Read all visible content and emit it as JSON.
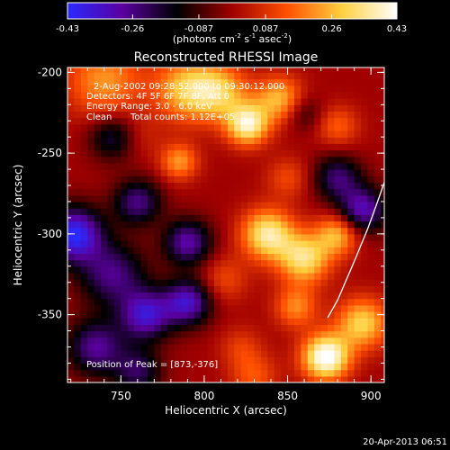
{
  "colorbar": {
    "ticks": [
      "-0.43",
      "-0.26",
      "-0.087",
      "0.087",
      "0.26",
      "0.43"
    ],
    "units_prefix": "(photons cm",
    "units_exp1": "-2",
    "units_mid": " s",
    "units_exp2": "-1",
    "units_mid2": " asec",
    "units_exp3": "-2",
    "units_suffix": ")",
    "range": [
      -0.43,
      0.43
    ],
    "colors": [
      "#2a2aff",
      "#5a00a0",
      "#000000",
      "#a00000",
      "#ff5000",
      "#ffd040",
      "#ffffff"
    ]
  },
  "chart_data": {
    "type": "heatmap",
    "title": "Reconstructed RHESSI Image",
    "xlabel": "Heliocentric X (arcsec)",
    "ylabel": "Heliocentric Y (arcsec)",
    "xlim": [
      718,
      908
    ],
    "ylim": [
      -392,
      -197
    ],
    "xticks": [
      750,
      800,
      850,
      900
    ],
    "yticks": [
      -200,
      -250,
      -300,
      -350
    ],
    "annotations": {
      "time": "2-Aug-2002 09:28:52.000 to 09:30:12.000",
      "detectors": "Detectors: 4F 5F 6F 7F 8F, Att 0",
      "energy": "Energy Range: 3.0 - 6.0 keV",
      "clean": "Clean",
      "counts": "Total counts: 1.12E+05",
      "peak": "Position of Peak = [873,-376]"
    },
    "limb_curve": [
      [
        874,
        -352
      ],
      [
        880,
        -341
      ],
      [
        890,
        -317
      ],
      [
        898,
        -297
      ],
      [
        904,
        -280
      ],
      [
        908,
        -268
      ]
    ],
    "sources": [
      {
        "x": 740,
        "y": -205,
        "amp": 0.22,
        "sigma": 16
      },
      {
        "x": 790,
        "y": -210,
        "amp": 0.28,
        "sigma": 14
      },
      {
        "x": 810,
        "y": -212,
        "amp": 0.24,
        "sigma": 12
      },
      {
        "x": 826,
        "y": -232,
        "amp": 0.38,
        "sigma": 9
      },
      {
        "x": 845,
        "y": -216,
        "amp": 0.26,
        "sigma": 10
      },
      {
        "x": 785,
        "y": -255,
        "amp": 0.22,
        "sigma": 8
      },
      {
        "x": 762,
        "y": -240,
        "amp": 0.06,
        "sigma": 9
      },
      {
        "x": 850,
        "y": -265,
        "amp": 0.12,
        "sigma": 9
      },
      {
        "x": 880,
        "y": -233,
        "amp": 0.15,
        "sigma": 9
      },
      {
        "x": 838,
        "y": -300,
        "amp": 0.36,
        "sigma": 11
      },
      {
        "x": 860,
        "y": -315,
        "amp": 0.33,
        "sigma": 11
      },
      {
        "x": 880,
        "y": -300,
        "amp": 0.26,
        "sigma": 9
      },
      {
        "x": 812,
        "y": -328,
        "amp": 0.12,
        "sigma": 10
      },
      {
        "x": 855,
        "y": -345,
        "amp": 0.2,
        "sigma": 9
      },
      {
        "x": 822,
        "y": -370,
        "amp": 0.1,
        "sigma": 9
      },
      {
        "x": 830,
        "y": -388,
        "amp": 0.14,
        "sigma": 10
      },
      {
        "x": 873,
        "y": -376,
        "amp": 0.46,
        "sigma": 10
      },
      {
        "x": 895,
        "y": -355,
        "amp": 0.3,
        "sigma": 11
      },
      {
        "x": 722,
        "y": -300,
        "amp": -0.42,
        "sigma": 12
      },
      {
        "x": 745,
        "y": -325,
        "amp": -0.26,
        "sigma": 14
      },
      {
        "x": 765,
        "y": -350,
        "amp": -0.34,
        "sigma": 11
      },
      {
        "x": 790,
        "y": -305,
        "amp": -0.3,
        "sigma": 10
      },
      {
        "x": 790,
        "y": -342,
        "amp": -0.34,
        "sigma": 10
      },
      {
        "x": 760,
        "y": -280,
        "amp": -0.26,
        "sigma": 10
      },
      {
        "x": 735,
        "y": -370,
        "amp": -0.28,
        "sigma": 12
      },
      {
        "x": 745,
        "y": -240,
        "amp": -0.2,
        "sigma": 10
      },
      {
        "x": 880,
        "y": -265,
        "amp": -0.24,
        "sigma": 10
      },
      {
        "x": 895,
        "y": -285,
        "amp": -0.32,
        "sigma": 10
      },
      {
        "x": 860,
        "y": -225,
        "amp": -0.12,
        "sigma": 8
      },
      {
        "x": 760,
        "y": -385,
        "amp": -0.22,
        "sigma": 10
      }
    ]
  },
  "footer": {
    "timestamp": "20-Apr-2013 06:51"
  }
}
